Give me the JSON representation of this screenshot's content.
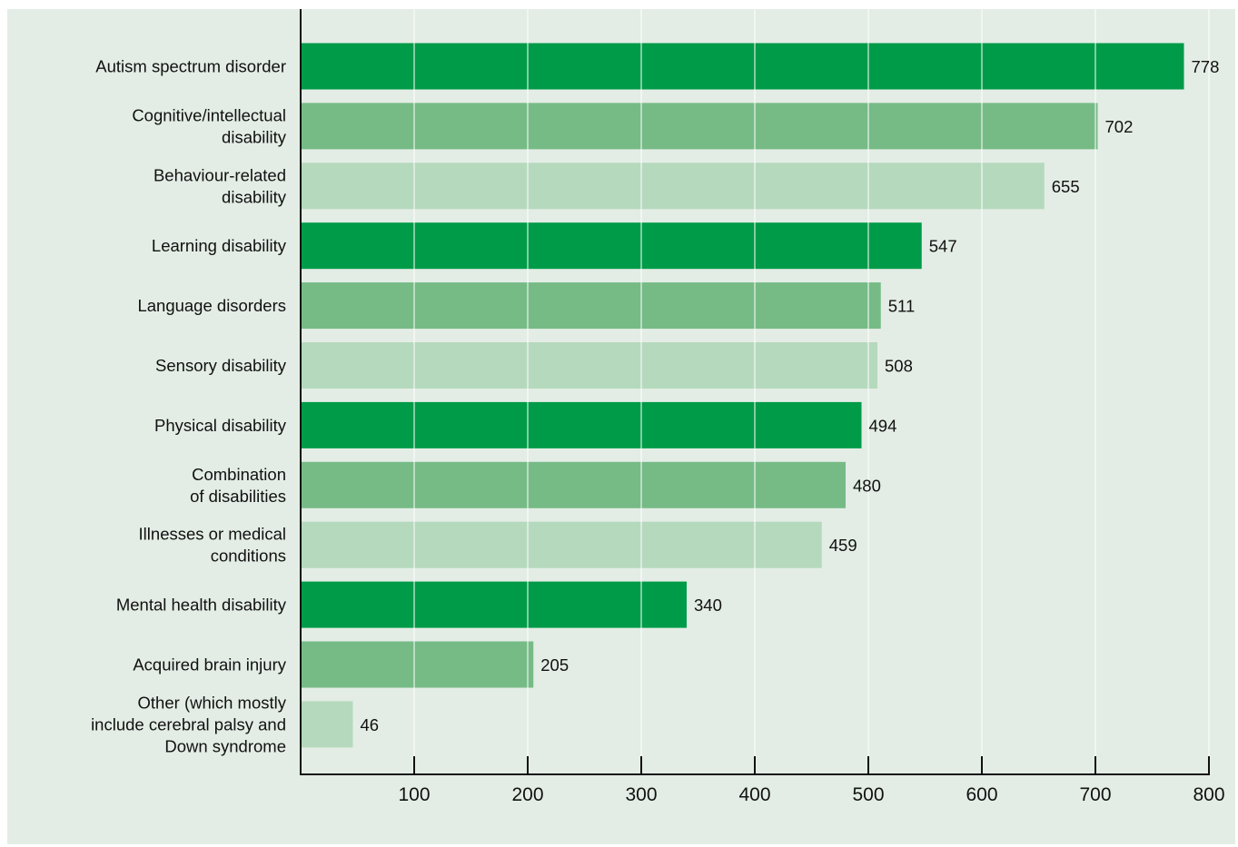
{
  "chart_data": {
    "type": "bar",
    "orientation": "horizontal",
    "categories": [
      "Autism spectrum disorder",
      "Cognitive/intellectual disability",
      "Behaviour-related disability",
      "Learning disability",
      "Language disorders",
      "Sensory disability",
      "Physical disability",
      "Combination of disabilities",
      "Illnesses or medical conditions",
      "Mental health disability",
      "Acquired brain injury",
      "Other (which mostly include cerebral palsy and Down syndrome"
    ],
    "label_lines": [
      [
        "Autism spectrum disorder"
      ],
      [
        "Cognitive/intellectual",
        "disability"
      ],
      [
        "Behaviour-related",
        "disability"
      ],
      [
        "Learning disability"
      ],
      [
        "Language disorders"
      ],
      [
        "Sensory disability"
      ],
      [
        "Physical disability"
      ],
      [
        "Combination",
        "of disabilities"
      ],
      [
        "Illnesses or medical",
        "conditions"
      ],
      [
        "Mental health disability"
      ],
      [
        "Acquired brain injury"
      ],
      [
        "Other (which mostly",
        "include cerebral palsy and",
        "Down syndrome"
      ]
    ],
    "values": [
      778,
      702,
      655,
      547,
      511,
      508,
      494,
      480,
      459,
      340,
      205,
      46
    ],
    "data_labels": [
      "778",
      "702",
      "655",
      "547",
      "511",
      "508",
      "494",
      "480",
      "459",
      "340",
      "205",
      "46"
    ],
    "xlim": [
      0,
      800
    ],
    "xticks": [
      100,
      200,
      300,
      400,
      500,
      600,
      700,
      800
    ],
    "xtick_labels": [
      "100",
      "200",
      "300",
      "400",
      "500",
      "600",
      "700",
      "800"
    ],
    "grid": "vertical",
    "colors": [
      "#009b48",
      "#76bb86",
      "#b5d9bc"
    ],
    "background": "#e3ede5",
    "gridline_color": "#ffffff",
    "axis_color": "#111111"
  }
}
